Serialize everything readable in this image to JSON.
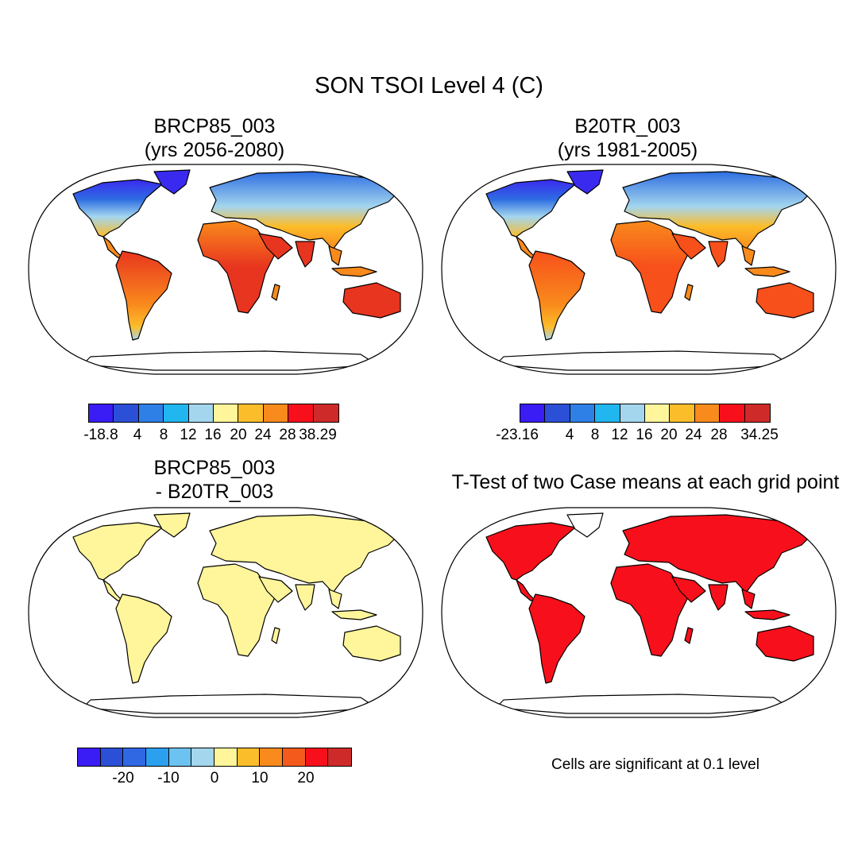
{
  "title": "SON TSOI Level 4 (C)",
  "panels": [
    {
      "title_line1": "BRCP85_003",
      "title_line2": "(yrs 2056-2080)"
    },
    {
      "title_line1": "B20TR_003",
      "title_line2": "(yrs 1981-2005)"
    },
    {
      "title_line1": "BRCP85_003",
      "title_line2": "- B20TR_003"
    },
    {
      "title_line1": "T-Test of two Case means at each grid point"
    }
  ],
  "colorbars": [
    {
      "colors": [
        "#3a1cf5",
        "#2b4fd6",
        "#2e80e6",
        "#21b6f0",
        "#a4d6ee",
        "#fff59a",
        "#fcbd2a",
        "#f98a1c",
        "#f7101b",
        "#cf2a2a"
      ],
      "labels": [
        "-18.8",
        "4",
        "8",
        "12",
        "16",
        "20",
        "24",
        "28",
        "38.29"
      ]
    },
    {
      "colors": [
        "#3a1cf5",
        "#2b4fd6",
        "#2e80e6",
        "#21b6f0",
        "#a4d6ee",
        "#fff59a",
        "#fcbd2a",
        "#f98a1c",
        "#f7101b",
        "#cf2a2a"
      ],
      "labels": [
        "-23.16",
        "4",
        "8",
        "12",
        "16",
        "20",
        "24",
        "28",
        "34.25"
      ]
    },
    {
      "colors": [
        "#3a1cf5",
        "#2b4fd6",
        "#3068e4",
        "#2ba0ee",
        "#6cc2f0",
        "#a4d6ee",
        "#fff59a",
        "#fcbd2a",
        "#f98a1c",
        "#f45a1c",
        "#f7101b",
        "#cf2a2a"
      ],
      "labels": [
        "-20",
        "-10",
        "0",
        "10",
        "20"
      ]
    }
  ],
  "footnote": "Cells are significant at 0.1 level",
  "map_colors": {
    "future": {
      "arctic": "#3a2af0",
      "subarctic": "#2e6ee2",
      "temperate": "#a4d6ee",
      "warm": "#fcbd2a",
      "hot": "#f98a1c",
      "tropical": "#e8351f"
    },
    "historical": {
      "arctic": "#3a2af0",
      "subarctic": "#2e6ee2",
      "temperate": "#a4d6ee",
      "warm": "#fcbd2a",
      "hot": "#f98a1c",
      "tropical": "#f7501b"
    },
    "difference": "#fff59a",
    "significance": "#f7101b"
  }
}
